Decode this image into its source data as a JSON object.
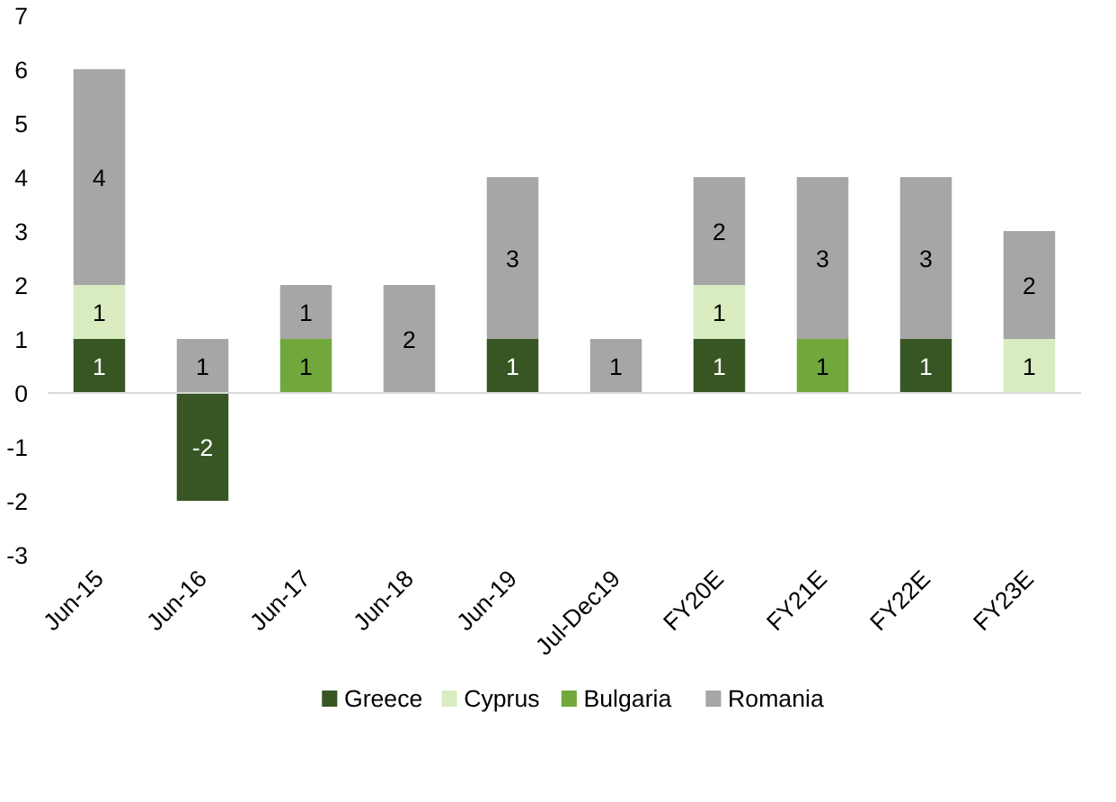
{
  "chart_data": {
    "type": "bar",
    "stacked": true,
    "data_labels": true,
    "legend": "bottom",
    "grid": false,
    "categories": [
      "Jun-15",
      "Jun-16",
      "Jun-17",
      "Jun-18",
      "Jun-19",
      "Jul-Dec19",
      "FY20E",
      "FY21E",
      "FY22E",
      "FY23E"
    ],
    "ylim": [
      -3,
      7
    ],
    "ref_lines": [
      {
        "axis": "y",
        "value": 0,
        "color": "#d9d9d9"
      }
    ],
    "yticks": [
      -3,
      -2,
      -1,
      0,
      1,
      2,
      3,
      4,
      5,
      6,
      7
    ],
    "series": [
      {
        "name": "Greece",
        "color": "#375623",
        "values": [
          1,
          -2,
          null,
          null,
          1,
          null,
          1,
          null,
          1,
          null
        ]
      },
      {
        "name": "Cyprus",
        "color": "#d9ecc0",
        "values": [
          1,
          null,
          null,
          null,
          null,
          null,
          1,
          null,
          null,
          1
        ]
      },
      {
        "name": "Bulgaria",
        "color": "#70a83c",
        "values": [
          null,
          null,
          1,
          null,
          null,
          null,
          null,
          1,
          null,
          null
        ]
      },
      {
        "name": "Romania",
        "color": "#a6a6a6",
        "values": [
          4,
          1,
          1,
          2,
          3,
          1,
          2,
          3,
          3,
          2
        ]
      }
    ]
  }
}
